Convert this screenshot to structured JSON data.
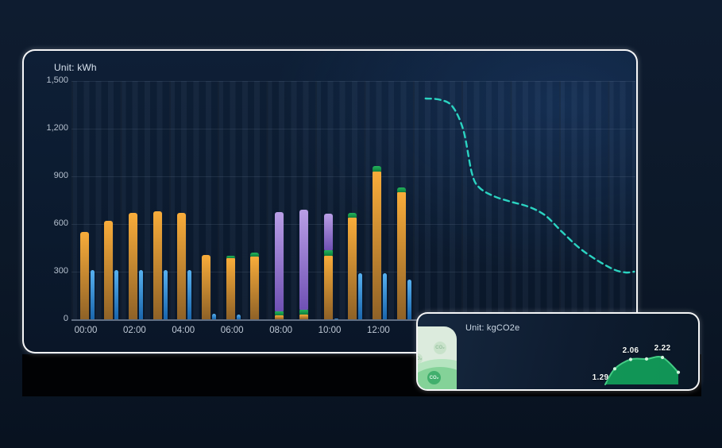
{
  "background": {
    "page_top_color": "#0e1c30",
    "page_bottom_color": "#081220",
    "band_color": "#010204"
  },
  "energy_panel": {
    "accent_line_color": "#2bd3c1",
    "axis_text_color": "#b6c1cf"
  },
  "co2_panel": {
    "card_icon": "CO₂",
    "card_color": "#dcebdd",
    "wave_color": "#84d298"
  },
  "chart_data": [
    {
      "type": "bar",
      "title": "Unit: kWh",
      "ylabel": "kWh",
      "ylim": [
        0,
        1500
      ],
      "grid": true,
      "y_tick_labels": [
        "1,500",
        "1,200",
        "900",
        "600",
        "300",
        "0"
      ],
      "x_tick_labels": [
        "00:00",
        "02:00",
        "04:00",
        "06:00",
        "08:00",
        "10:00",
        "12:00"
      ],
      "hours": [
        0,
        1,
        2,
        3,
        4,
        5,
        6,
        7,
        8,
        9,
        10,
        11,
        12,
        13
      ],
      "series": [
        {
          "name": "orange-consumption",
          "color_top": "#f8ac3a",
          "color_bottom": "#8f6227",
          "values": [
            550,
            620,
            670,
            680,
            670,
            405,
            385,
            395,
            25,
            30,
            400,
            640,
            930,
            800
          ]
        },
        {
          "name": "green-segment",
          "color_top": "#23b35b",
          "color_bottom": "#0f7e3e",
          "values": [
            0,
            0,
            0,
            0,
            0,
            0,
            15,
            25,
            25,
            30,
            35,
            30,
            35,
            30
          ]
        },
        {
          "name": "purple-segment",
          "color_top": "#b99ee6",
          "color_bottom": "#6f51b4",
          "values": [
            0,
            0,
            0,
            0,
            0,
            0,
            0,
            0,
            625,
            630,
            230,
            0,
            0,
            0
          ]
        },
        {
          "name": "blue-thin",
          "color_top": "#57b1f0",
          "color_bottom": "#1a66ad",
          "values": [
            310,
            310,
            310,
            310,
            310,
            35,
            30,
            0,
            0,
            0,
            5,
            290,
            290,
            250
          ]
        }
      ],
      "line_series": {
        "name": "forecast-dashed",
        "color": "#2bd3c1",
        "style": "dashed",
        "points_hour_value": [
          [
            14.0,
            1390
          ],
          [
            14.6,
            1382
          ],
          [
            15.1,
            1340
          ],
          [
            15.55,
            1190
          ],
          [
            15.9,
            920
          ],
          [
            16.2,
            830
          ],
          [
            16.8,
            775
          ],
          [
            17.5,
            740
          ],
          [
            18.2,
            710
          ],
          [
            18.9,
            655
          ],
          [
            19.6,
            550
          ],
          [
            20.3,
            450
          ],
          [
            21.0,
            375
          ],
          [
            21.7,
            315
          ],
          [
            22.2,
            295
          ],
          [
            22.55,
            300
          ]
        ]
      }
    },
    {
      "type": "area",
      "title": "Unit: kgCO2e",
      "unit": "kgCO2e",
      "line_color": "#44cd85",
      "fill_color": "#12a05a",
      "marker_color": "#cdf6dc",
      "points": [
        {
          "value": 1.29,
          "label": "1.29"
        },
        {
          "value": 2.06,
          "label": "2.06"
        },
        {
          "value": 2.1
        },
        {
          "value": 2.22,
          "label": "2.22"
        },
        {
          "value": 1.0
        }
      ]
    }
  ]
}
